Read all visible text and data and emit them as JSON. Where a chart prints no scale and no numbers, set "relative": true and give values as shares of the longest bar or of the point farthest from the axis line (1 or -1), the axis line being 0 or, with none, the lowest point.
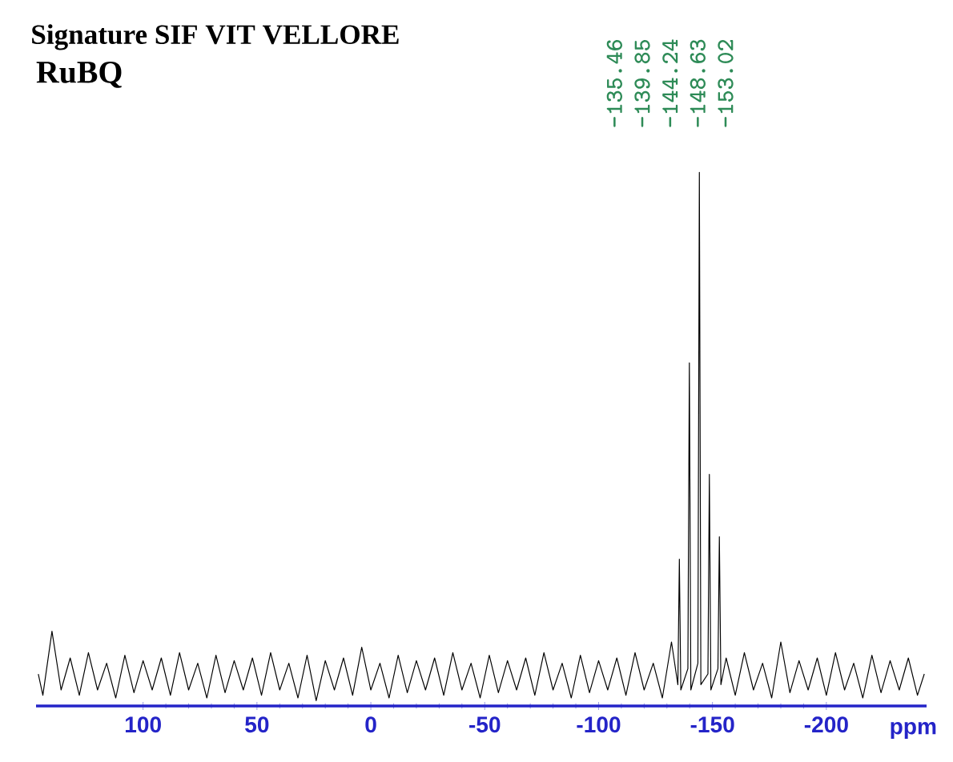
{
  "chart_data": {
    "type": "line",
    "title": "Signature SIF VIT VELLORE",
    "subtitle": "RuBQ",
    "xlabel": "ppm",
    "relative": true,
    "color": "#000000",
    "xlim": [
      147,
      -244
    ],
    "xticks": [
      100,
      50,
      0,
      -50,
      -100,
      -150,
      -200
    ],
    "annotations": [
      "-135.46",
      "-139.85",
      "-144.24",
      "-148.63",
      "-153.02"
    ],
    "x": [
      146,
      144,
      140,
      136,
      132,
      128,
      124,
      120,
      116,
      112,
      108,
      104,
      100,
      96,
      92,
      88,
      84,
      80,
      76,
      72,
      68,
      64,
      60,
      56,
      52,
      48,
      44,
      40,
      36,
      32,
      28,
      24,
      20,
      16,
      12,
      8,
      4,
      0,
      -4,
      -8,
      -12,
      -16,
      -20,
      -24,
      -28,
      -32,
      -36,
      -40,
      -44,
      -48,
      -52,
      -56,
      -60,
      -64,
      -68,
      -72,
      -76,
      -80,
      -84,
      -88,
      -92,
      -96,
      -100,
      -104,
      -108,
      -112,
      -116,
      -120,
      -124,
      -128,
      -132,
      -134.8,
      -135.46,
      -136.1,
      -139.2,
      -139.85,
      -140.5,
      -143.6,
      -144.24,
      -144.9,
      -148.0,
      -148.63,
      -149.3,
      -152.4,
      -153.02,
      -153.7,
      -156,
      -160,
      -164,
      -168,
      -172,
      -176,
      -180,
      -184,
      -188,
      -192,
      -196,
      -200,
      -204,
      -208,
      -212,
      -216,
      -220,
      -224,
      -228,
      -232,
      -236,
      -240,
      -243
    ],
    "values": [
      0.06,
      0.02,
      0.14,
      0.03,
      0.09,
      0.02,
      0.1,
      0.03,
      0.08,
      0.015,
      0.095,
      0.025,
      0.085,
      0.03,
      0.09,
      0.02,
      0.1,
      0.03,
      0.08,
      0.015,
      0.095,
      0.025,
      0.085,
      0.03,
      0.09,
      0.02,
      0.1,
      0.03,
      0.08,
      0.015,
      0.095,
      0.01,
      0.085,
      0.03,
      0.09,
      0.02,
      0.11,
      0.03,
      0.08,
      0.015,
      0.095,
      0.025,
      0.085,
      0.03,
      0.09,
      0.02,
      0.1,
      0.03,
      0.08,
      0.015,
      0.095,
      0.025,
      0.085,
      0.03,
      0.09,
      0.02,
      0.1,
      0.03,
      0.08,
      0.015,
      0.095,
      0.025,
      0.085,
      0.03,
      0.09,
      0.02,
      0.1,
      0.03,
      0.08,
      0.015,
      0.12,
      0.04,
      0.275,
      0.03,
      0.07,
      0.643,
      0.03,
      0.08,
      1,
      0.04,
      0.06,
      0.434,
      0.03,
      0.07,
      0.317,
      0.04,
      0.09,
      0.02,
      0.1,
      0.03,
      0.08,
      0.015,
      0.12,
      0.025,
      0.085,
      0.03,
      0.09,
      0.02,
      0.1,
      0.03,
      0.08,
      0.015,
      0.095,
      0.025,
      0.085,
      0.03,
      0.09,
      0.02,
      0.06
    ]
  }
}
